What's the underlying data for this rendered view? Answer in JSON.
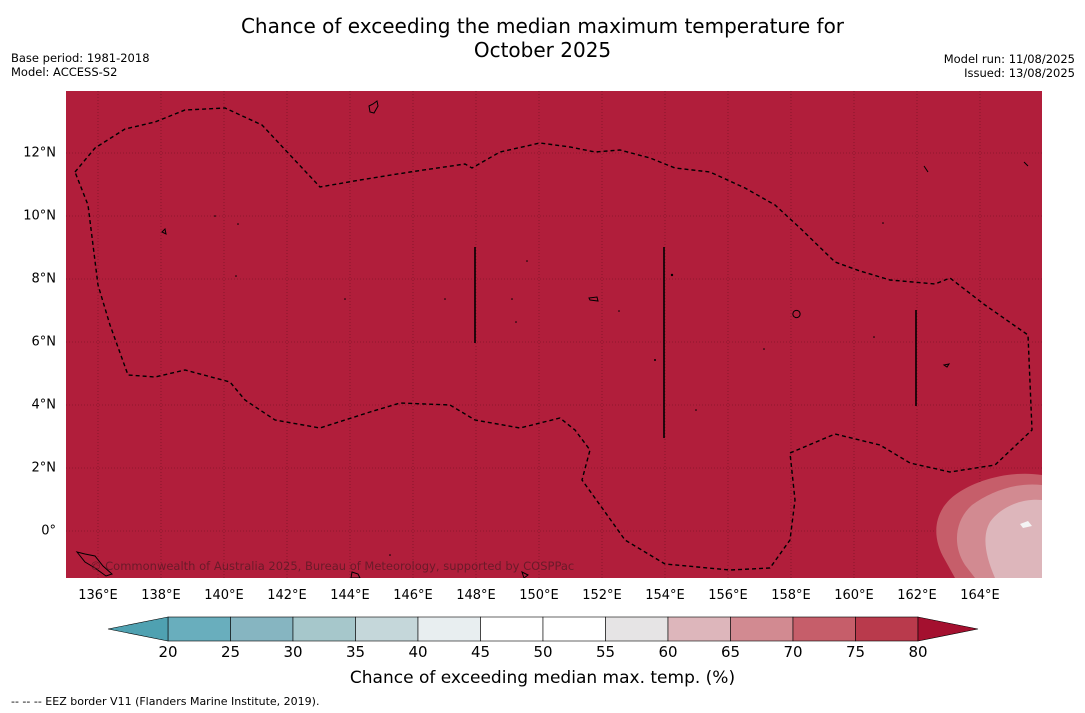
{
  "title_line1": "Chance of exceeding the median maximum temperature for",
  "title_line2": "October 2025",
  "base_period": "Base period: 1981-2018",
  "model": "Model: ACCESS-S2",
  "model_run": "Model run: 11/08/2025",
  "issued": "Issued: 13/08/2025",
  "copyright": "© Commonwealth of Australia 2025, Bureau of Meteorology, supported by COSPPac",
  "footer": "--  --  -- EEZ border V11 (Flanders Marine Institute, 2019).",
  "colorbar_label": "Chance of exceeding median max. temp. (%)",
  "x_ticks": [
    "136°E",
    "138°E",
    "140°E",
    "142°E",
    "144°E",
    "146°E",
    "148°E",
    "150°E",
    "152°E",
    "154°E",
    "156°E",
    "158°E",
    "160°E",
    "162°E",
    "164°E"
  ],
  "y_ticks": [
    "12°N",
    "10°N",
    "8°N",
    "6°N",
    "4°N",
    "2°N",
    "0°"
  ],
  "colorbar_ticks": [
    "20",
    "25",
    "30",
    "35",
    "40",
    "45",
    "50",
    "55",
    "60",
    "65",
    "70",
    "75",
    "80"
  ],
  "colors": {
    "map_fill": "#b11e3b",
    "bins": [
      "#69aebd",
      "#86b5c1",
      "#a6c7cb",
      "#c5d7da",
      "#e8eef0",
      "#ffffff",
      "#ffffff",
      "#e6e4e5",
      "#ddb6bb",
      "#d28a91",
      "#c65e6a",
      "#b93a4c"
    ],
    "under": "#4fa1b1",
    "over": "#a4102f"
  },
  "map_data": {
    "lon_range": [
      135.2,
      166.0
    ],
    "lat_range": [
      -1.5,
      14.0
    ],
    "dominant_category": "80+",
    "features": [
      "EEZ border (dashed)",
      "coastlines",
      "graticule"
    ]
  }
}
